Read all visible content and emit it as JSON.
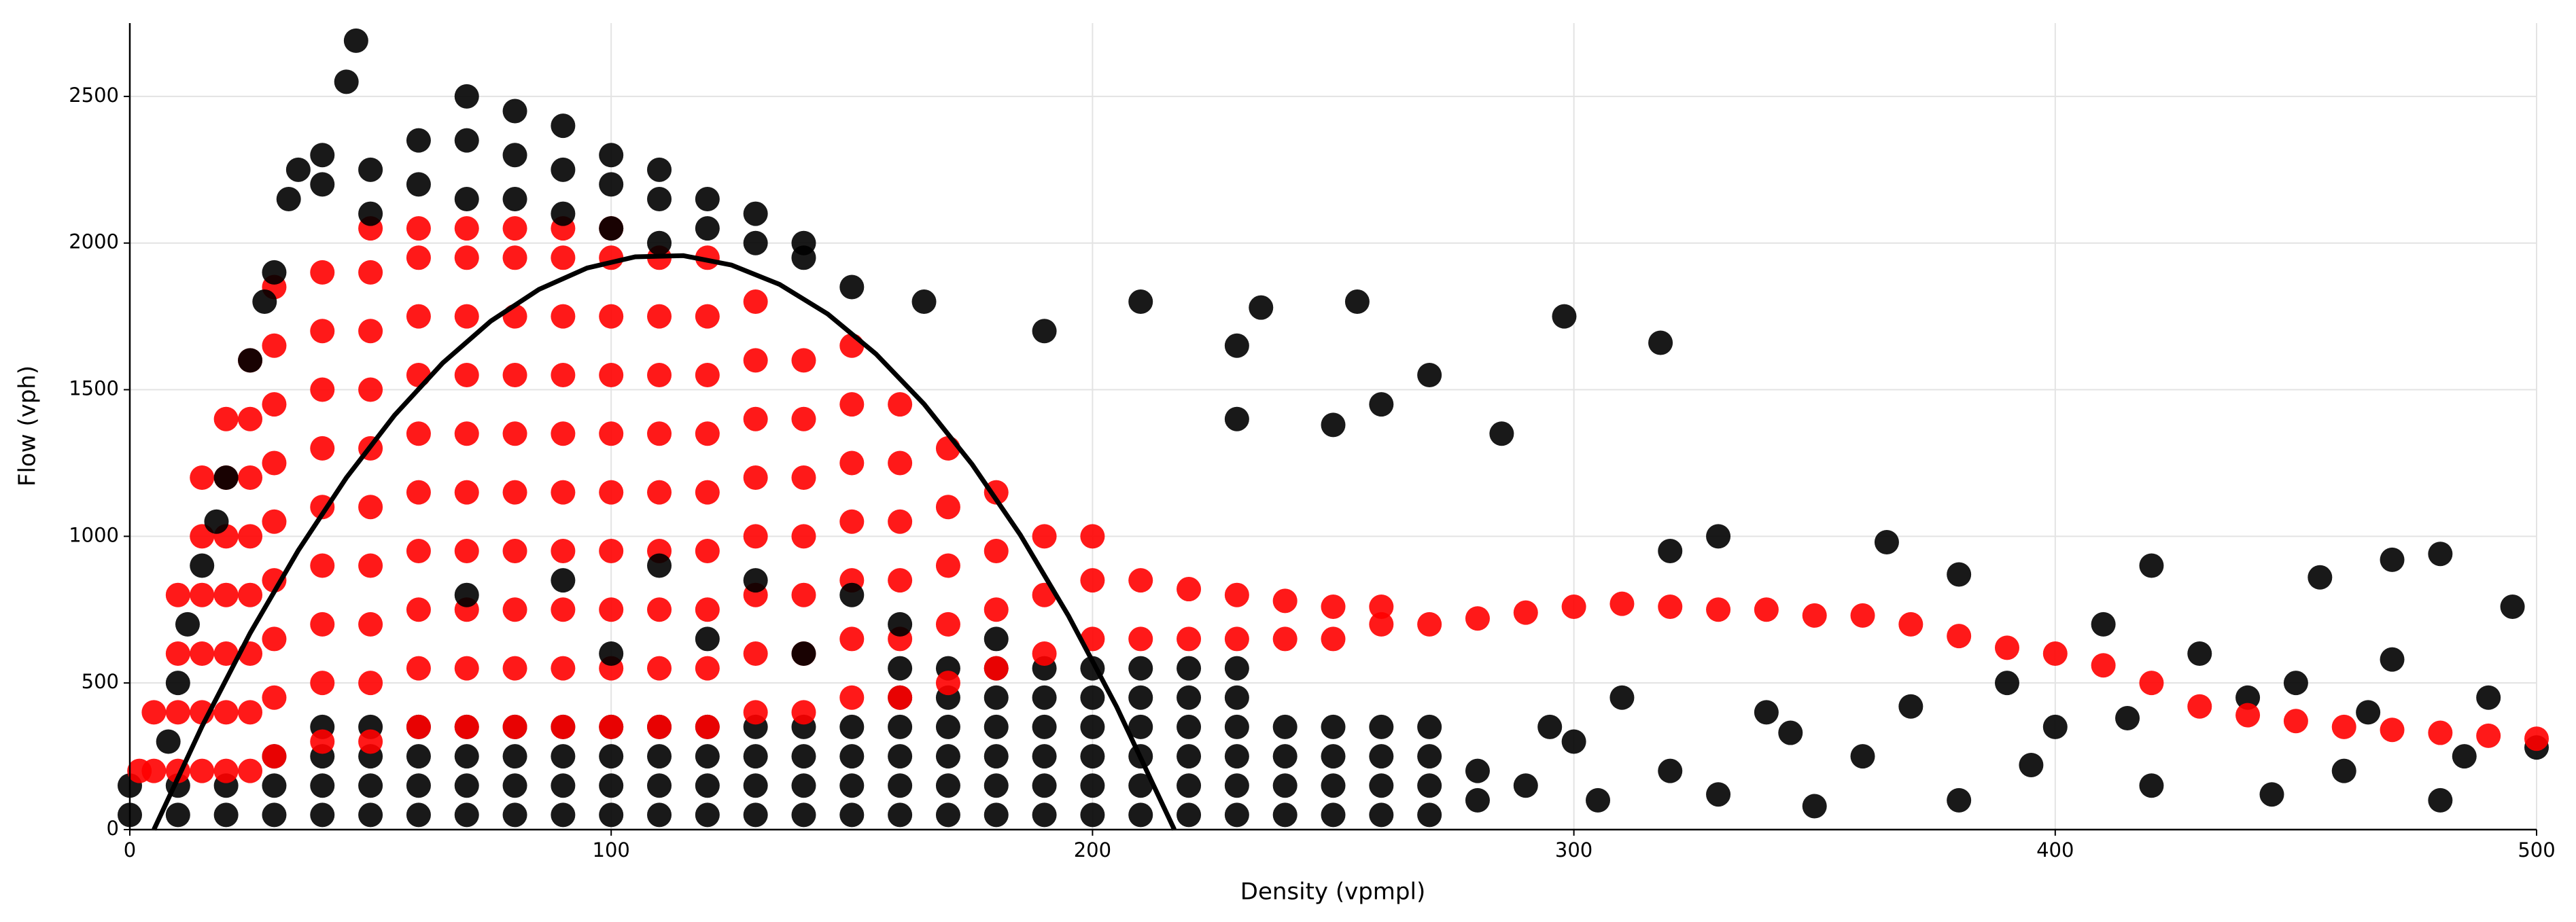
{
  "chart_data": {
    "type": "scatter",
    "xlabel": "Density (vpmpl)",
    "ylabel": "Flow (vph)",
    "xlim": [
      0,
      500
    ],
    "ylim": [
      0,
      2750
    ],
    "xticks": [
      0,
      100,
      200,
      300,
      400,
      500
    ],
    "yticks": [
      0,
      500,
      1000,
      1500,
      2000,
      2500
    ],
    "grid": true,
    "series": [
      {
        "color": "#000000",
        "x": [
          0,
          0,
          10,
          10,
          20,
          20,
          30,
          30,
          30,
          40,
          40,
          40,
          40,
          50,
          50,
          50,
          50,
          60,
          60,
          60,
          60,
          70,
          70,
          70,
          70,
          80,
          80,
          80,
          80,
          90,
          90,
          90,
          90,
          100,
          100,
          100,
          100,
          110,
          110,
          110,
          110,
          120,
          120,
          120,
          120,
          130,
          130,
          130,
          130,
          140,
          140,
          140,
          140,
          150,
          150,
          150,
          150,
          160,
          160,
          160,
          160,
          160,
          160,
          170,
          170,
          170,
          170,
          170,
          170,
          180,
          180,
          180,
          180,
          180,
          180,
          190,
          190,
          190,
          190,
          190,
          190,
          200,
          200,
          200,
          200,
          200,
          200,
          210,
          210,
          210,
          210,
          210,
          210,
          220,
          220,
          220,
          220,
          220,
          220,
          230,
          230,
          230,
          230,
          230,
          230,
          240,
          240,
          240,
          240,
          250,
          250,
          250,
          250,
          260,
          260,
          260,
          260,
          270,
          270,
          270,
          270,
          280,
          280,
          165,
          190,
          210,
          230,
          235,
          255,
          260,
          270,
          285,
          298,
          318,
          230,
          250,
          320,
          330,
          365,
          380,
          420,
          455,
          470,
          480,
          495,
          300,
          320,
          340,
          360,
          380,
          400,
          420,
          440,
          460,
          480,
          500,
          350,
          390,
          410,
          430,
          450,
          470,
          490,
          310,
          330,
          345,
          370,
          395,
          415,
          445,
          465,
          485,
          290,
          295,
          305
        ],
        "values": [
          50,
          150,
          50,
          150,
          50,
          150,
          50,
          150,
          250,
          50,
          150,
          250,
          350,
          50,
          150,
          250,
          350,
          50,
          150,
          250,
          350,
          50,
          150,
          250,
          350,
          50,
          150,
          250,
          350,
          50,
          150,
          250,
          350,
          50,
          150,
          250,
          350,
          50,
          150,
          250,
          350,
          50,
          150,
          250,
          350,
          50,
          150,
          250,
          350,
          50,
          150,
          250,
          350,
          50,
          150,
          250,
          350,
          50,
          150,
          250,
          350,
          450,
          550,
          50,
          150,
          250,
          350,
          450,
          550,
          50,
          150,
          250,
          350,
          450,
          550,
          50,
          150,
          250,
          350,
          450,
          550,
          50,
          150,
          250,
          350,
          450,
          550,
          50,
          150,
          250,
          350,
          450,
          550,
          50,
          150,
          250,
          350,
          450,
          550,
          50,
          150,
          250,
          350,
          450,
          550,
          50,
          150,
          250,
          350,
          50,
          150,
          250,
          350,
          50,
          150,
          250,
          350,
          50,
          150,
          250,
          350,
          100,
          200,
          1800,
          1700,
          1800,
          1650,
          1780,
          1800,
          1450,
          1550,
          1350,
          1750,
          1660,
          1400,
          1380,
          950,
          1000,
          980,
          870,
          900,
          860,
          920,
          940,
          760,
          300,
          200,
          400,
          250,
          100,
          350,
          150,
          450,
          200,
          100,
          280,
          80,
          500,
          700,
          600,
          500,
          580,
          450,
          450,
          120,
          330,
          420,
          220,
          380,
          120,
          400,
          250,
          150,
          350,
          100
        ]
      },
      {
        "color": "#ff0000",
        "x": [
          2,
          5,
          5,
          10,
          10,
          10,
          10,
          15,
          15,
          15,
          15,
          15,
          15,
          20,
          20,
          20,
          20,
          20,
          20,
          20,
          25,
          25,
          25,
          25,
          25,
          25,
          25,
          25,
          30,
          30,
          30,
          30,
          30,
          30,
          30,
          30,
          30,
          40,
          40,
          40,
          40,
          40,
          40,
          40,
          40,
          40,
          50,
          50,
          50,
          50,
          50,
          50,
          50,
          50,
          50,
          50,
          60,
          60,
          60,
          60,
          60,
          60,
          60,
          60,
          60,
          60,
          70,
          70,
          70,
          70,
          70,
          70,
          70,
          70,
          70,
          70,
          80,
          80,
          80,
          80,
          80,
          80,
          80,
          80,
          80,
          80,
          90,
          90,
          90,
          90,
          90,
          90,
          90,
          90,
          90,
          90,
          100,
          100,
          100,
          100,
          100,
          100,
          100,
          100,
          100,
          100,
          110,
          110,
          110,
          110,
          110,
          110,
          110,
          110,
          110,
          120,
          120,
          120,
          120,
          120,
          120,
          120,
          120,
          120,
          130,
          130,
          130,
          130,
          130,
          130,
          130,
          130,
          140,
          140,
          140,
          140,
          140,
          140,
          140,
          150,
          150,
          150,
          150,
          150,
          150,
          150,
          160,
          160,
          160,
          160,
          160,
          160,
          170,
          170,
          170,
          170,
          170,
          180,
          180,
          180,
          180,
          190,
          190,
          190,
          200,
          200,
          200,
          210,
          210,
          220,
          220,
          230,
          230,
          240,
          240,
          250,
          250,
          260,
          260,
          270,
          280,
          290,
          300,
          310,
          320,
          330,
          340,
          350,
          360,
          370,
          380,
          390,
          400,
          410,
          420,
          430,
          440,
          450,
          460,
          470,
          480,
          490,
          500
        ],
        "values": [
          200,
          200,
          400,
          200,
          400,
          600,
          800,
          200,
          400,
          600,
          800,
          1000,
          1200,
          200,
          400,
          600,
          800,
          1000,
          1200,
          1400,
          200,
          400,
          600,
          800,
          1000,
          1200,
          1400,
          1600,
          250,
          450,
          650,
          850,
          1050,
          1250,
          1450,
          1650,
          1850,
          300,
          500,
          700,
          900,
          1100,
          1300,
          1500,
          1700,
          1900,
          300,
          500,
          700,
          900,
          1100,
          1300,
          1500,
          1700,
          1900,
          2050,
          350,
          550,
          750,
          950,
          1150,
          1350,
          1550,
          1750,
          1950,
          2050,
          350,
          550,
          750,
          950,
          1150,
          1350,
          1550,
          1750,
          1950,
          2050,
          350,
          550,
          750,
          950,
          1150,
          1350,
          1550,
          1750,
          1950,
          2050,
          350,
          550,
          750,
          950,
          1150,
          1350,
          1550,
          1750,
          1950,
          2050,
          350,
          550,
          750,
          950,
          1150,
          1350,
          1550,
          1750,
          1950,
          2050,
          350,
          550,
          750,
          950,
          1150,
          1350,
          1550,
          1750,
          1950,
          350,
          550,
          750,
          950,
          1150,
          1350,
          1550,
          1750,
          1950,
          400,
          600,
          800,
          1000,
          1200,
          1400,
          1600,
          1800,
          400,
          600,
          800,
          1000,
          1200,
          1400,
          1600,
          450,
          650,
          850,
          1050,
          1250,
          1450,
          1650,
          450,
          650,
          850,
          1050,
          1250,
          1450,
          500,
          700,
          900,
          1100,
          1300,
          550,
          750,
          950,
          1150,
          600,
          800,
          1000,
          650,
          850,
          1000,
          650,
          850,
          650,
          820,
          650,
          800,
          650,
          780,
          650,
          760,
          700,
          760,
          700,
          720,
          740,
          760,
          770,
          760,
          750,
          750,
          730,
          730,
          700,
          660,
          620,
          600,
          560,
          500,
          420,
          390,
          370,
          350,
          340,
          330,
          320,
          310
        ]
      },
      {
        "color": "#000000",
        "x": [
          8,
          10,
          12,
          15,
          18,
          20,
          25,
          28,
          30,
          33,
          35,
          40,
          45,
          47,
          40,
          50,
          50,
          60,
          60,
          70,
          70,
          70,
          80,
          80,
          80,
          90,
          90,
          90,
          100,
          100,
          100,
          110,
          110,
          110,
          120,
          120,
          130,
          130,
          140,
          140,
          150,
          70,
          90,
          110,
          130,
          150,
          120,
          160,
          180,
          100,
          140
        ],
        "values": [
          300,
          500,
          700,
          900,
          1050,
          1200,
          1600,
          1800,
          1900,
          2150,
          2250,
          2300,
          2550,
          2690,
          2200,
          2100,
          2250,
          2200,
          2350,
          2150,
          2350,
          2500,
          2150,
          2300,
          2450,
          2100,
          2250,
          2400,
          2050,
          2200,
          2300,
          2000,
          2150,
          2250,
          2050,
          2150,
          2000,
          2100,
          1950,
          2000,
          1850,
          800,
          850,
          900,
          850,
          800,
          650,
          700,
          650,
          600,
          600
        ]
      },
      {
        "type": "line",
        "color": "#000000",
        "x": [
          5,
          15,
          25,
          35,
          45,
          55,
          65,
          75,
          85,
          95,
          105,
          115,
          125,
          135,
          145,
          155,
          165,
          175,
          185,
          195,
          205,
          217
        ],
        "values": [
          0,
          352,
          670,
          952,
          1200,
          1413,
          1591,
          1734,
          1842,
          1915,
          1953,
          1957,
          1925,
          1859,
          1758,
          1622,
          1451,
          1245,
          1005,
          729,
          419,
          0
        ]
      }
    ]
  }
}
